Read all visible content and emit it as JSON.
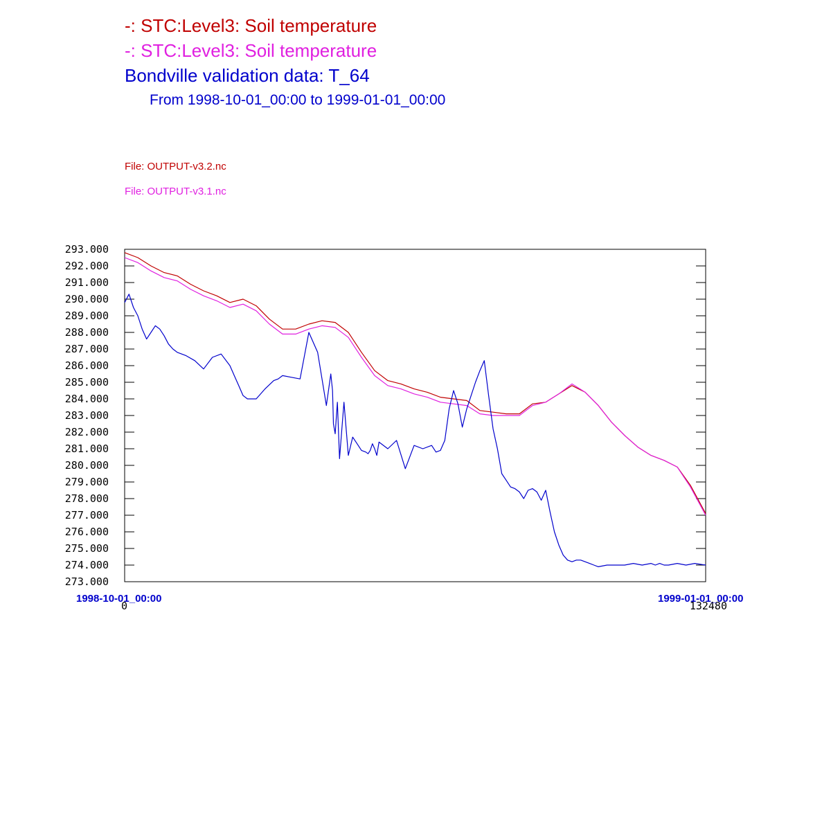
{
  "colors": {
    "series1": "#c00000",
    "series2": "#e020e0",
    "series3": "#0000cc",
    "axis": "#000000"
  },
  "header": {
    "title1": "-:  STC:Level3: Soil temperature",
    "title2": "-:  STC:Level3: Soil temperature",
    "title3": "Bondville validation data:  T_64",
    "subtitle": "From 1998-10-01_00:00 to 1999-01-01_00:00"
  },
  "files": {
    "file1": "File: OUTPUT-v3.2.nc",
    "file2": "File: OUTPUT-v3.1.nc"
  },
  "xaxis": {
    "start_date": "1998-10-01_00:00",
    "end_date": "1999-01-01_00:00"
  },
  "chart_data": {
    "type": "line",
    "ylim": [
      273,
      293
    ],
    "xlim": [
      0,
      132480
    ],
    "grid": false,
    "y_tick_labels": [
      "293.000",
      "292.000",
      "291.000",
      "290.000",
      "289.000",
      "288.000",
      "287.000",
      "286.000",
      "285.000",
      "284.000",
      "283.000",
      "282.000",
      "281.000",
      "280.000",
      "279.000",
      "278.000",
      "277.000",
      "276.000",
      "275.000",
      "274.000",
      "273.000"
    ],
    "x_tick_labels": [
      "0",
      "132480"
    ],
    "series": [
      {
        "color": "#c00000",
        "x": [
          0,
          3000,
          6000,
          9000,
          12000,
          15000,
          18000,
          21000,
          24000,
          27000,
          30000,
          33000,
          36000,
          39000,
          42000,
          45000,
          48000,
          51000,
          54000,
          57000,
          60000,
          63000,
          66000,
          69000,
          72000,
          75000,
          78000,
          81000,
          84000,
          87000,
          90000,
          93000,
          96000,
          99000,
          102000,
          105000,
          108000,
          111000,
          114000,
          117000,
          120000,
          123000,
          126000,
          129000,
          132480
        ],
        "y": [
          292.8,
          292.5,
          292.0,
          291.6,
          291.4,
          290.9,
          290.5,
          290.2,
          289.8,
          290.0,
          289.6,
          288.8,
          288.2,
          288.2,
          288.5,
          288.7,
          288.6,
          288.0,
          286.8,
          285.7,
          285.1,
          284.9,
          284.6,
          284.4,
          284.1,
          284.0,
          283.9,
          283.3,
          283.2,
          283.1,
          283.1,
          283.7,
          283.8,
          284.3,
          284.8,
          284.4,
          283.6,
          282.6,
          281.8,
          281.1,
          280.6,
          280.3,
          279.9,
          278.8,
          277.1
        ]
      },
      {
        "color": "#e020e0",
        "x": [
          0,
          3000,
          6000,
          9000,
          12000,
          15000,
          18000,
          21000,
          24000,
          27000,
          30000,
          33000,
          36000,
          39000,
          42000,
          45000,
          48000,
          51000,
          54000,
          57000,
          60000,
          63000,
          66000,
          69000,
          72000,
          75000,
          78000,
          81000,
          84000,
          87000,
          90000,
          93000,
          96000,
          99000,
          102000,
          105000,
          108000,
          111000,
          114000,
          117000,
          120000,
          123000,
          126000,
          129000,
          132480
        ],
        "y": [
          292.5,
          292.2,
          291.7,
          291.3,
          291.1,
          290.6,
          290.2,
          289.9,
          289.5,
          289.7,
          289.3,
          288.5,
          287.9,
          287.9,
          288.2,
          288.4,
          288.3,
          287.7,
          286.5,
          285.4,
          284.8,
          284.6,
          284.3,
          284.1,
          283.8,
          283.7,
          283.6,
          283.1,
          283.0,
          283.0,
          283.0,
          283.6,
          283.8,
          284.3,
          284.9,
          284.4,
          283.6,
          282.6,
          281.8,
          281.1,
          280.6,
          280.3,
          279.9,
          278.7,
          277.0
        ]
      },
      {
        "color": "#0000cc",
        "x": [
          0,
          1000,
          2000,
          3000,
          4000,
          5000,
          6000,
          7000,
          8000,
          9000,
          10000,
          11000,
          12000,
          14000,
          16000,
          18000,
          20000,
          22000,
          24000,
          25000,
          26000,
          27000,
          28000,
          30000,
          32000,
          34000,
          35000,
          36000,
          38000,
          40000,
          42000,
          44000,
          46000,
          47000,
          47400,
          47600,
          48000,
          48500,
          49000,
          50000,
          51000,
          52000,
          53000,
          54000,
          55000,
          55500,
          56000,
          56500,
          57000,
          57500,
          58000,
          60000,
          62000,
          64000,
          66000,
          68000,
          70000,
          71000,
          72000,
          73000,
          74000,
          75000,
          76000,
          77000,
          78000,
          79000,
          80000,
          81000,
          82000,
          83000,
          84000,
          85000,
          86000,
          87000,
          88000,
          89000,
          90000,
          91000,
          92000,
          93000,
          94000,
          95000,
          96000,
          97000,
          98000,
          99000,
          100000,
          101000,
          102000,
          103000,
          104000,
          105000,
          106000,
          107000,
          108000,
          110000,
          112000,
          114000,
          116000,
          118000,
          120000,
          121000,
          122000,
          123000,
          124000,
          126000,
          128000,
          130000,
          132480
        ],
        "y": [
          289.8,
          290.3,
          289.5,
          289.0,
          288.2,
          287.6,
          288.0,
          288.4,
          288.2,
          287.8,
          287.3,
          287.0,
          286.8,
          286.6,
          286.3,
          285.8,
          286.5,
          286.7,
          286.0,
          285.4,
          284.8,
          284.2,
          284.0,
          284.0,
          284.6,
          285.1,
          285.2,
          285.4,
          285.3,
          285.2,
          288.0,
          286.8,
          283.6,
          285.5,
          284.5,
          282.5,
          281.9,
          283.8,
          280.4,
          283.8,
          280.6,
          281.7,
          281.3,
          280.9,
          280.8,
          280.7,
          280.9,
          281.3,
          281.0,
          280.6,
          281.4,
          281.0,
          281.5,
          279.8,
          281.2,
          281.0,
          281.2,
          280.8,
          280.9,
          281.5,
          283.4,
          284.5,
          283.7,
          282.3,
          283.4,
          284.2,
          285.0,
          285.7,
          286.3,
          284.2,
          282.2,
          281.0,
          279.5,
          279.1,
          278.7,
          278.6,
          278.4,
          278.0,
          278.5,
          278.6,
          278.4,
          277.9,
          278.5,
          277.2,
          276.0,
          275.2,
          274.6,
          274.3,
          274.2,
          274.3,
          274.3,
          274.2,
          274.1,
          274.0,
          273.9,
          274.0,
          274.0,
          274.0,
          274.1,
          274.0,
          274.1,
          274.0,
          274.1,
          274.0,
          274.0,
          274.1,
          274.0,
          274.1,
          274.0
        ]
      }
    ]
  }
}
